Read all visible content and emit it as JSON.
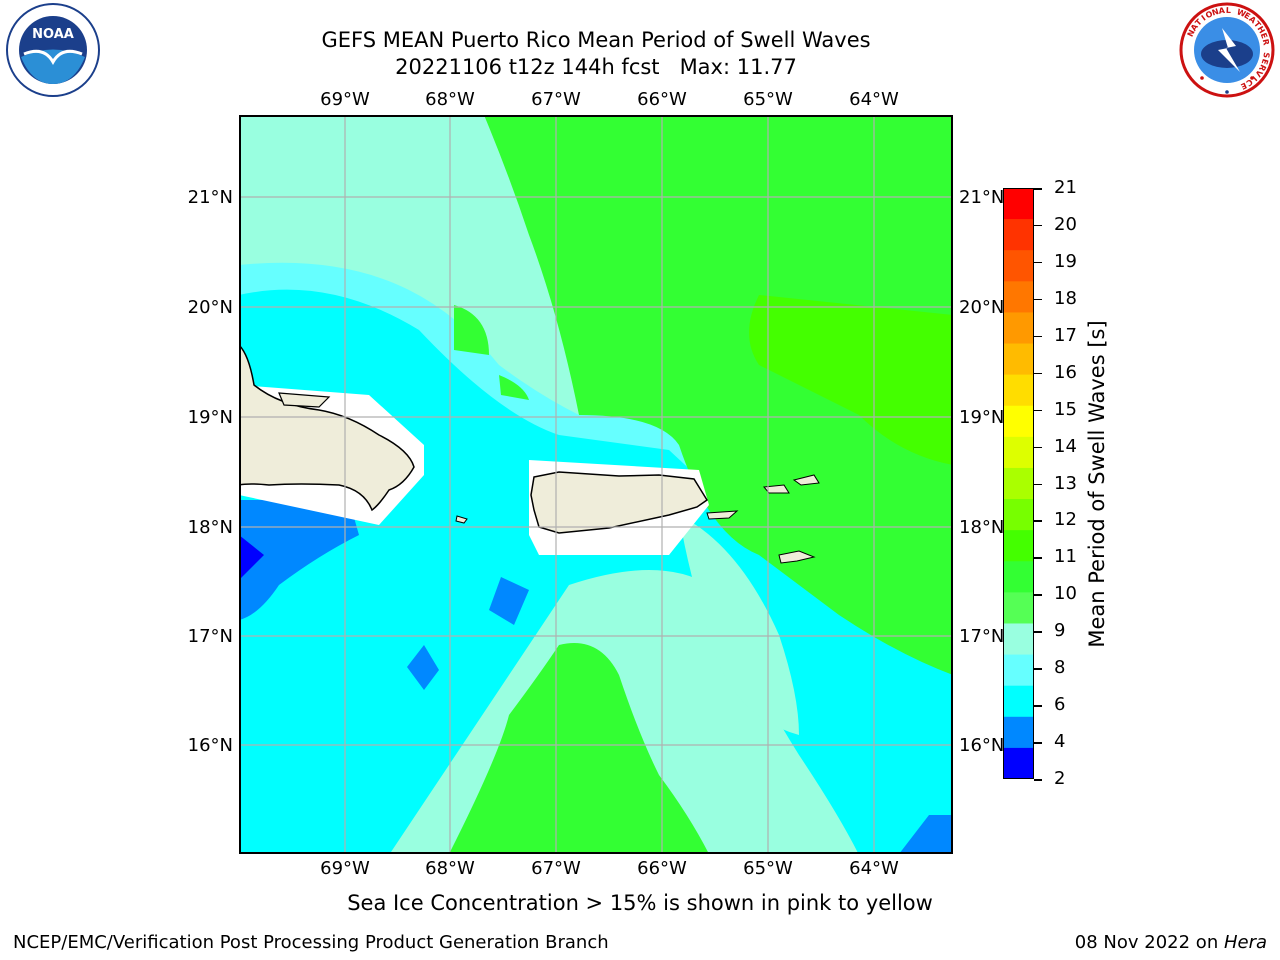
{
  "header": {
    "title_line1": "GEFS MEAN Puerto Rico Mean Period of Swell Waves",
    "title_line2": "20221106 t12z 144h fcst   Max: 11.77"
  },
  "map": {
    "lon_labels": [
      "69°W",
      "68°W",
      "67°W",
      "66°W",
      "65°W",
      "64°W"
    ],
    "lat_labels": [
      "21°N",
      "20°N",
      "19°N",
      "18°N",
      "17°N",
      "16°N"
    ],
    "land_color": "#efedda",
    "grid_color": "#b0b0b0"
  },
  "colorbar": {
    "label": "Mean Period of Swell Waves [s]",
    "ticks": [
      "21",
      "20",
      "19",
      "18",
      "17",
      "16",
      "15",
      "14",
      "13",
      "12",
      "11",
      "10",
      "9",
      "8",
      "6",
      "4",
      "2"
    ],
    "colors_top_to_bottom": [
      "#ff0000",
      "#ff3300",
      "#ff5500",
      "#ff7700",
      "#ff9900",
      "#ffbb00",
      "#ffdd00",
      "#ffff00",
      "#ddff00",
      "#aaff00",
      "#77ff00",
      "#44ff00",
      "#33ff33",
      "#55ff55",
      "#99ffe0",
      "#66ffff",
      "#00ffff",
      "#0088ff",
      "#0000ff"
    ]
  },
  "footer": {
    "note": "Sea Ice Concentration > 15% is shown in pink to yellow",
    "credit_left": "NCEP/EMC/Verification Post Processing Product Generation Branch",
    "credit_date": "08 Nov 2022 on ",
    "credit_host": "Hera"
  },
  "logos": {
    "noaa_text": "NOAA",
    "nws_text": "NATIONAL WEATHER SERVICE"
  }
}
